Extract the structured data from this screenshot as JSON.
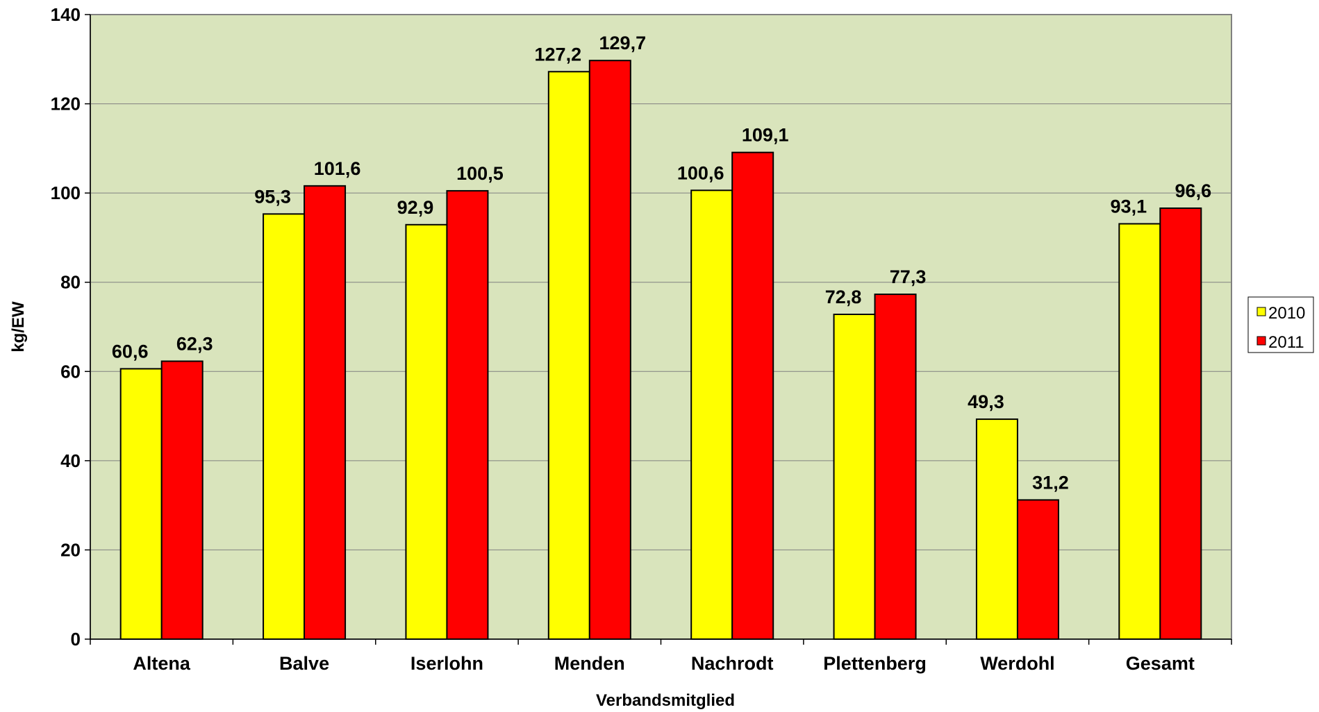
{
  "chart_data": {
    "type": "bar",
    "categories": [
      "Altena",
      "Balve",
      "Iserlohn",
      "Menden",
      "Nachrodt",
      "Plettenberg",
      "Werdohl",
      "Gesamt"
    ],
    "series": [
      {
        "name": "2010",
        "color": "#ffff00",
        "values": [
          60.6,
          95.3,
          92.9,
          127.2,
          100.6,
          72.8,
          49.3,
          93.1
        ],
        "labels": [
          "60,6",
          "95,3",
          "92,9",
          "127,2",
          "100,6",
          "72,8",
          "49,3",
          "93,1"
        ]
      },
      {
        "name": "2011",
        "color": "#ff0000",
        "values": [
          62.3,
          101.6,
          100.5,
          129.7,
          109.1,
          77.3,
          31.2,
          96.6
        ],
        "labels": [
          "62,3",
          "101,6",
          "100,5",
          "129,7",
          "109,1",
          "77,3",
          "31,2",
          "96,6"
        ]
      }
    ],
    "xlabel": "Verbandsmitglied",
    "ylabel": "kg/EW",
    "ylim": [
      0,
      140
    ],
    "yticks": [
      0,
      20,
      40,
      60,
      80,
      100,
      120,
      140
    ],
    "grid": true,
    "legend_position": "right",
    "plot_background": "#d9e4bc"
  }
}
